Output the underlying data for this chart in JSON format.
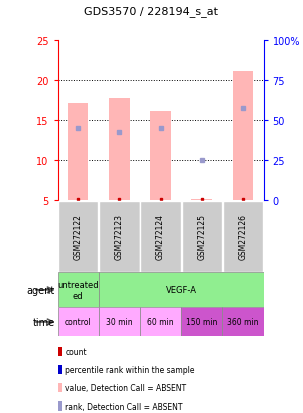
{
  "title": "GDS3570 / 228194_s_at",
  "samples": [
    "GSM272122",
    "GSM272123",
    "GSM272124",
    "GSM272125",
    "GSM272126"
  ],
  "bar_bottom": [
    5,
    5,
    5,
    5,
    5
  ],
  "bar_top": [
    17.2,
    17.8,
    16.1,
    5.1,
    21.1
  ],
  "rank_values": [
    14.0,
    13.5,
    14.0,
    10.0,
    16.5
  ],
  "count_values": [
    5.05,
    5.05,
    5.05,
    5.05,
    5.05
  ],
  "ylim": [
    5,
    25
  ],
  "y2lim": [
    0,
    100
  ],
  "yticks": [
    5,
    10,
    15,
    20,
    25
  ],
  "y2ticks": [
    0,
    25,
    50,
    75,
    100
  ],
  "bar_color": "#ffb6b6",
  "rank_color": "#9999cc",
  "count_color": "#cc0000",
  "agent_labels": [
    "untreated\ned",
    "VEGF-A"
  ],
  "agent_spans": [
    1,
    4
  ],
  "agent_colors": [
    "#90ee90",
    "#90ee90"
  ],
  "time_labels": [
    "control",
    "30 min",
    "60 min",
    "150 min",
    "360 min"
  ],
  "time_colors": [
    "#ffaaff",
    "#ffaaff",
    "#ffaaff",
    "#cc55cc",
    "#cc55cc"
  ],
  "legend_items": [
    {
      "label": "count",
      "color": "#cc0000"
    },
    {
      "label": "percentile rank within the sample",
      "color": "#0000cc"
    },
    {
      "label": "value, Detection Call = ABSENT",
      "color": "#ffb6b6"
    },
    {
      "label": "rank, Detection Call = ABSENT",
      "color": "#9999cc"
    }
  ],
  "sample_bg": "#cccccc",
  "grid_color": "black",
  "grid_alpha": 0.5
}
